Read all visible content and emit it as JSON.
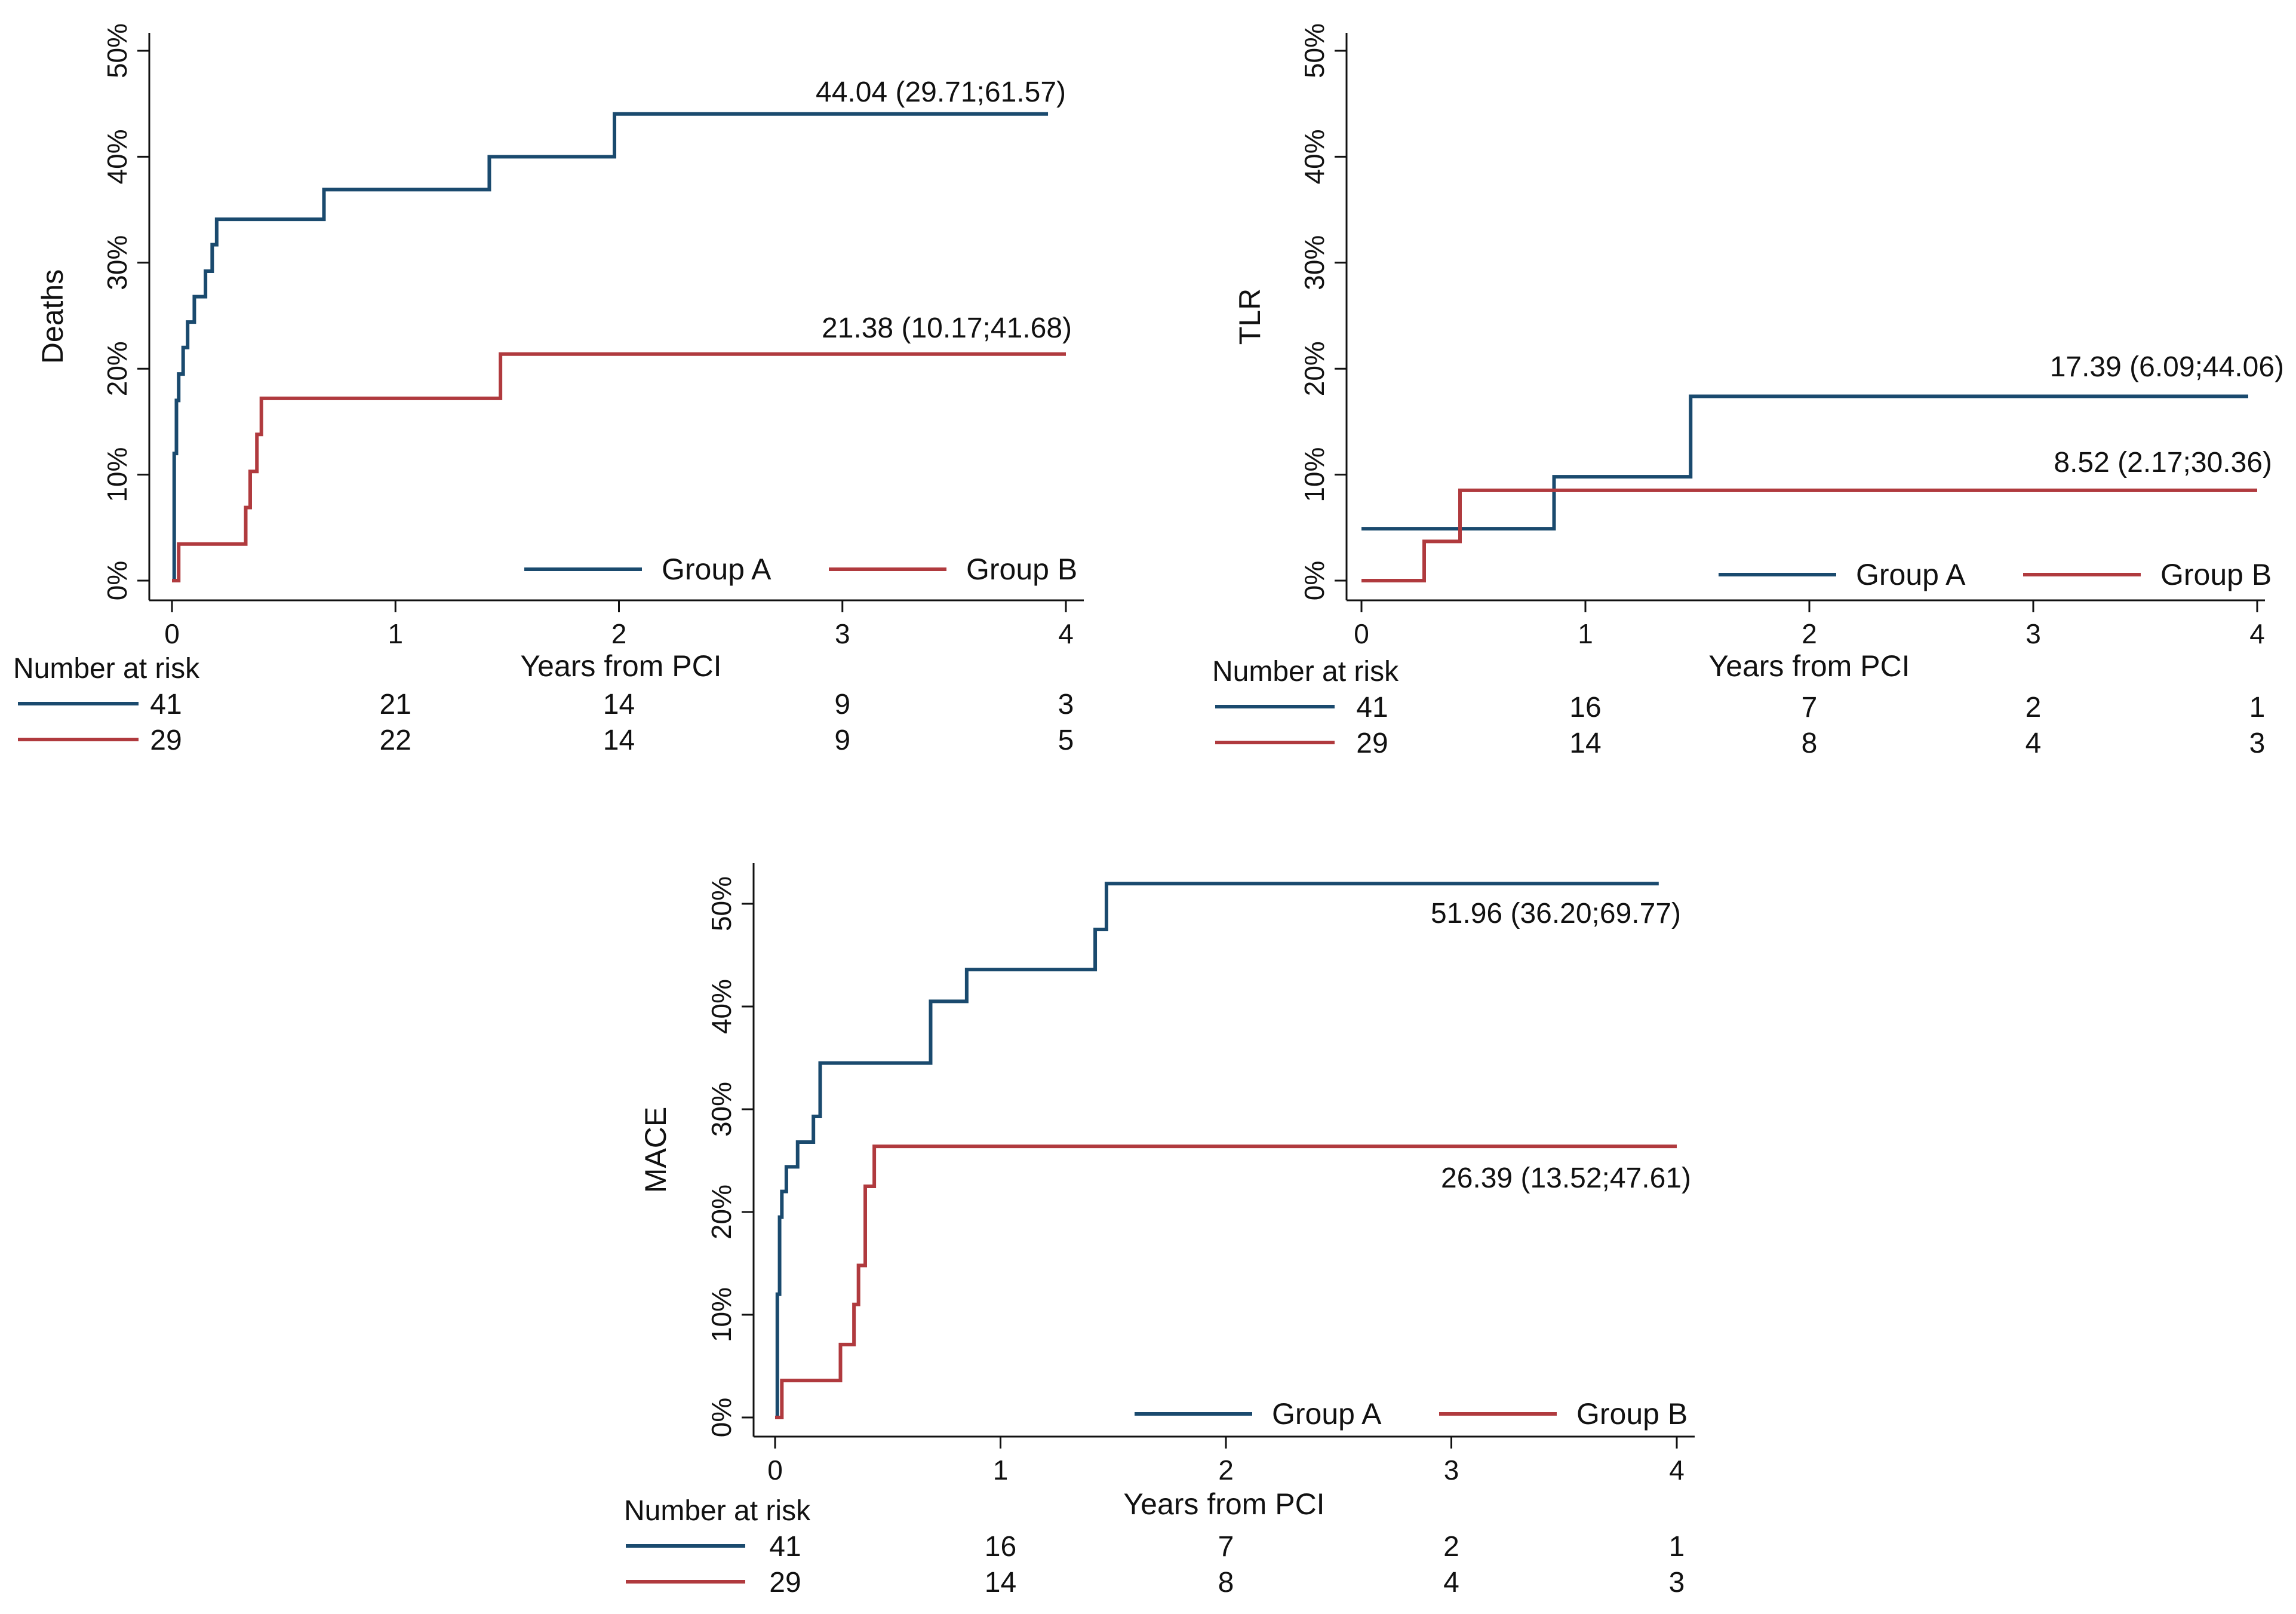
{
  "colors": {
    "group_a": "#1a4a6e",
    "group_b": "#b03a3e",
    "axis": "#111111"
  },
  "chart_data": [
    {
      "type": "line",
      "step": true,
      "ylabel": "Deaths",
      "xlabel": "Years from PCI",
      "xlim": [
        0,
        4
      ],
      "ylim": [
        0,
        50
      ],
      "xticks": [
        "0",
        "1",
        "2",
        "3",
        "4"
      ],
      "yticks": [
        "0%",
        "10%",
        "20%",
        "30%",
        "40%",
        "50%"
      ],
      "legend": [
        "Group A",
        "Group B"
      ],
      "series": [
        {
          "name": "Group A",
          "color": "#1a4a6e",
          "x": [
            0,
            0.01,
            0.02,
            0.03,
            0.05,
            0.07,
            0.1,
            0.15,
            0.18,
            0.2,
            0.68,
            1.42,
            1.98,
            3.92
          ],
          "y": [
            0,
            12,
            17,
            19.5,
            22,
            24.4,
            26.8,
            29.2,
            31.7,
            34.1,
            36.9,
            40.0,
            44.04,
            44.04
          ],
          "annotation": "44.04 (29.71;61.57)"
        },
        {
          "name": "Group B",
          "color": "#b03a3e",
          "x": [
            0,
            0.03,
            0.33,
            0.35,
            0.38,
            0.4,
            1.47,
            4.0
          ],
          "y": [
            0,
            3.45,
            6.9,
            10.3,
            13.8,
            17.2,
            21.38,
            21.38
          ],
          "annotation": "21.38 (10.17;41.68)"
        }
      ],
      "risk_table": {
        "title": "Number at risk",
        "rows": [
          [
            "41",
            "21",
            "14",
            "9",
            "3"
          ],
          [
            "29",
            "22",
            "14",
            "9",
            "5"
          ]
        ]
      }
    },
    {
      "type": "line",
      "step": true,
      "ylabel": "TLR",
      "xlabel": "Years from PCI",
      "xlim": [
        0,
        4
      ],
      "ylim": [
        0,
        50
      ],
      "xticks": [
        "0",
        "1",
        "2",
        "3",
        "4"
      ],
      "yticks": [
        "0%",
        "10%",
        "20%",
        "30%",
        "40%",
        "50%"
      ],
      "legend": [
        "Group A",
        "Group B"
      ],
      "series": [
        {
          "name": "Group A",
          "color": "#1a4a6e",
          "x": [
            0,
            0.86,
            1.47,
            3.96
          ],
          "y": [
            4.9,
            9.8,
            17.39,
            17.39
          ],
          "annotation": "17.39 (6.09;44.06)"
        },
        {
          "name": "Group B",
          "color": "#b03a3e",
          "x": [
            0,
            0.28,
            0.44,
            4.0
          ],
          "y": [
            0,
            3.7,
            8.52,
            8.52
          ],
          "annotation": "8.52 (2.17;30.36)"
        }
      ],
      "risk_table": {
        "title": "Number at risk",
        "rows": [
          [
            "41",
            "16",
            "7",
            "2",
            "1"
          ],
          [
            "29",
            "14",
            "8",
            "4",
            "3"
          ]
        ]
      }
    },
    {
      "type": "line",
      "step": true,
      "ylabel": "MACE",
      "xlabel": "Years from PCI",
      "xlim": [
        0,
        4
      ],
      "ylim": [
        0,
        55
      ],
      "xticks": [
        "0",
        "1",
        "2",
        "3",
        "4"
      ],
      "yticks": [
        "0%",
        "10%",
        "20%",
        "30%",
        "40%",
        "50%"
      ],
      "legend": [
        "Group A",
        "Group B"
      ],
      "series": [
        {
          "name": "Group A",
          "color": "#1a4a6e",
          "x": [
            0,
            0.01,
            0.02,
            0.03,
            0.05,
            0.1,
            0.17,
            0.2,
            0.69,
            0.85,
            1.42,
            1.47,
            3.92
          ],
          "y": [
            0,
            12,
            19.5,
            22,
            24.4,
            26.8,
            29.3,
            34.5,
            40.5,
            43.6,
            47.5,
            51.96,
            51.96
          ],
          "annotation": "51.96 (36.20;69.77)"
        },
        {
          "name": "Group B",
          "color": "#b03a3e",
          "x": [
            0,
            0.03,
            0.29,
            0.35,
            0.37,
            0.4,
            0.44,
            4.0
          ],
          "y": [
            0,
            3.6,
            7.1,
            11.0,
            14.8,
            22.5,
            26.39,
            26.39
          ],
          "annotation": "26.39 (13.52;47.61)"
        }
      ],
      "risk_table": {
        "title": "Number at risk",
        "rows": [
          [
            "41",
            "16",
            "7",
            "2",
            "1"
          ],
          [
            "29",
            "14",
            "8",
            "4",
            "3"
          ]
        ]
      }
    }
  ]
}
